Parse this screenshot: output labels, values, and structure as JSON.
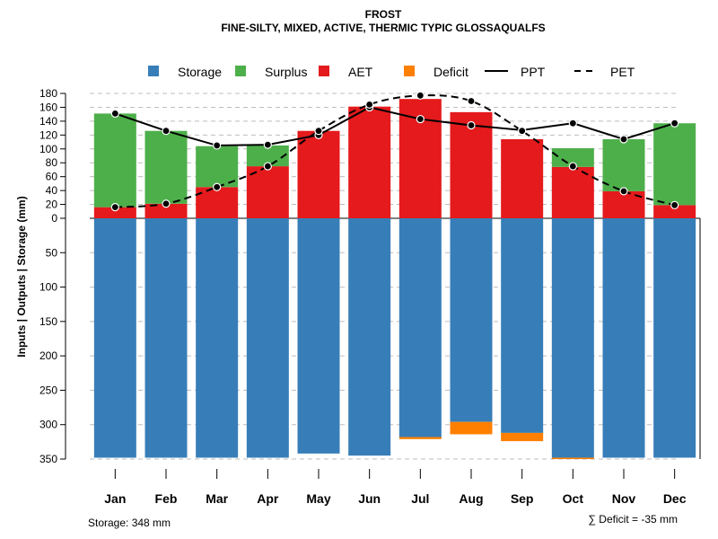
{
  "chart_data": {
    "type": "bar",
    "title": "FROST",
    "subtitle": "FINE-SILTY, MIXED, ACTIVE, THERMIC TYPIC GLOSSAQUALFS",
    "ylabel": "Inputs | Outputs | Storage     (mm)",
    "categories": [
      "Jan",
      "Feb",
      "Mar",
      "Apr",
      "May",
      "Jun",
      "Jul",
      "Aug",
      "Sep",
      "Oct",
      "Nov",
      "Dec"
    ],
    "upper_ticks": [
      "180",
      "160",
      "140",
      "120",
      "100",
      "80",
      "60",
      "40",
      "20",
      "0"
    ],
    "lower_ticks": [
      "50",
      "100",
      "150",
      "200",
      "250",
      "300",
      "350"
    ],
    "ylim_upper": [
      0,
      180
    ],
    "ylim_lower": [
      0,
      350
    ],
    "series": [
      {
        "name": "Storage",
        "color": "#377EB8",
        "values": [
          348,
          348,
          348,
          348,
          342,
          345,
          318,
          296,
          312,
          348,
          348,
          348
        ]
      },
      {
        "name": "Surplus",
        "color": "#4DAF4A",
        "values": [
          135,
          105,
          59,
          30,
          0,
          0,
          0,
          0,
          0,
          27,
          75,
          118
        ]
      },
      {
        "name": "AET",
        "color": "#E41A1C",
        "values": [
          16,
          21,
          45,
          75,
          126,
          161,
          172,
          153,
          114,
          74,
          39,
          19
        ]
      },
      {
        "name": "Deficit",
        "color": "#FF7F00",
        "values": [
          0,
          0,
          0,
          0,
          0,
          0,
          3,
          18,
          12,
          2,
          0,
          0
        ]
      },
      {
        "name": "PPT",
        "color": "#000000",
        "values": [
          151,
          126,
          105,
          106,
          120,
          160,
          143,
          134,
          127,
          137,
          114,
          137
        ]
      },
      {
        "name": "PET",
        "color": "#000000",
        "values": [
          16,
          21,
          45,
          75,
          126,
          164,
          177,
          169,
          126,
          75,
          39,
          19
        ]
      }
    ],
    "legend": [
      {
        "label": "Storage",
        "kind": "box",
        "color": "#377EB8"
      },
      {
        "label": "Surplus",
        "kind": "box",
        "color": "#4DAF4A"
      },
      {
        "label": "AET",
        "kind": "box",
        "color": "#E41A1C"
      },
      {
        "label": "Deficit",
        "kind": "box",
        "color": "#FF7F00"
      },
      {
        "label": "PPT",
        "kind": "solid",
        "color": "#000000"
      },
      {
        "label": "PET",
        "kind": "dashed",
        "color": "#000000"
      }
    ],
    "legend_position": "top",
    "grid": true,
    "storage_label": "Storage: 348 mm",
    "deficit_label": "∑ Deficit = -35 mm"
  }
}
